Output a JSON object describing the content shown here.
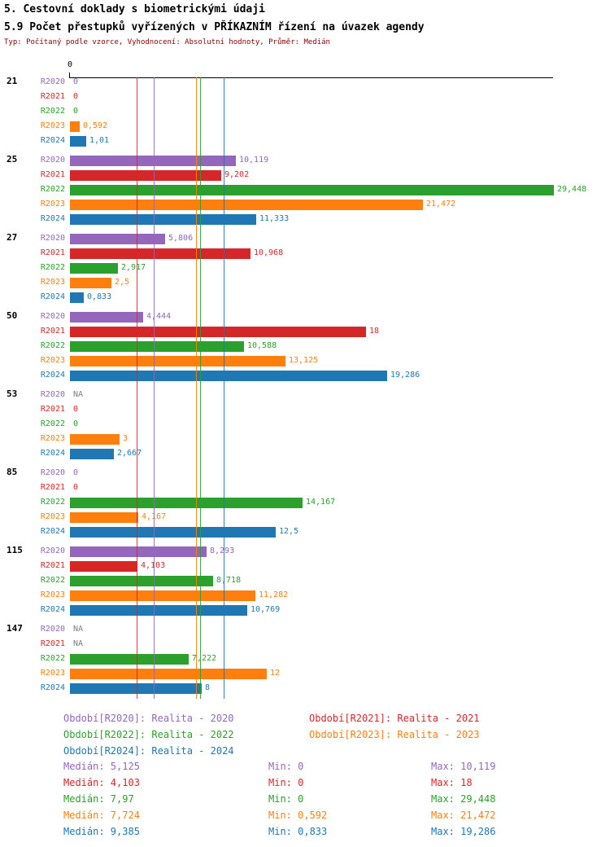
{
  "header": {
    "title1": "5. Cestovní doklady s biometrickými údaji",
    "title2": "5.9 Počet přestupků vyřízených v PŘÍKAZNÍM řízení na úvazek agendy",
    "subtitle": "Typ: Počítaný podle vzorce, Vyhodnocení: Absolutní hodnoty, Průměr: Medián"
  },
  "chart_data": {
    "type": "bar",
    "orientation": "horizontal",
    "title": "5.9 Počet přestupků vyřízených v PŘÍKAZNÍM řízení na úvazek agendy",
    "xlabel": "",
    "ylabel": "",
    "axis": {
      "tick_label": "0",
      "xmin": 0,
      "xmax": 29.448,
      "grid": false
    },
    "categories": [
      "21",
      "25",
      "27",
      "50",
      "53",
      "85",
      "115",
      "147"
    ],
    "series": [
      {
        "name": "R2020",
        "color": "#9467bd",
        "median": 5.125,
        "values": [
          0,
          10.119,
          5.806,
          4.444,
          null,
          0,
          8.293,
          null
        ],
        "value_labels": [
          "0",
          "10,119",
          "5,806",
          "4,444",
          "NA",
          "0",
          "8,293",
          "NA"
        ]
      },
      {
        "name": "R2021",
        "color": "#d62728",
        "median": 4.103,
        "values": [
          0,
          9.202,
          10.968,
          18,
          0,
          0,
          4.103,
          null
        ],
        "value_labels": [
          "0",
          "9,202",
          "10,968",
          "18",
          "0",
          "0",
          "4,103",
          "NA"
        ]
      },
      {
        "name": "R2022",
        "color": "#2ca02c",
        "median": 7.97,
        "values": [
          0,
          29.448,
          2.917,
          10.588,
          0,
          14.167,
          8.718,
          7.222
        ],
        "value_labels": [
          "0",
          "29,448",
          "2,917",
          "10,588",
          "0",
          "14,167",
          "8,718",
          "7,222"
        ]
      },
      {
        "name": "R2023",
        "color": "#ff7f0e",
        "median": 7.724,
        "values": [
          0.592,
          21.472,
          2.5,
          13.125,
          3,
          4.167,
          11.282,
          12
        ],
        "value_labels": [
          "0,592",
          "21,472",
          "2,5",
          "13,125",
          "3",
          "4,167",
          "11,282",
          "12"
        ]
      },
      {
        "name": "R2024",
        "color": "#1f77b4",
        "median": 9.385,
        "values": [
          1.01,
          11.333,
          0.833,
          19.286,
          2.667,
          12.5,
          10.769,
          8
        ],
        "value_labels": [
          "1,01",
          "11,333",
          "0,833",
          "19,286",
          "2,667",
          "12,5",
          "10,769",
          "8"
        ]
      }
    ],
    "na_label_color": "#808080",
    "legend_position": "bottom"
  },
  "legend": [
    {
      "label": "Období[R2020]: Realita - 2020",
      "color": "#9467bd"
    },
    {
      "label": "Období[R2021]: Realita - 2021",
      "color": "#d62728"
    },
    {
      "label": "Období[R2022]: Realita - 2022",
      "color": "#2ca02c"
    },
    {
      "label": "Období[R2023]: Realita - 2023",
      "color": "#ff7f0e"
    },
    {
      "label": "Období[R2024]: Realita - 2024",
      "color": "#1f77b4"
    }
  ],
  "stats": [
    {
      "median": "Medián: 5,125",
      "min": "Min: 0",
      "max": "Max: 10,119",
      "color": "#9467bd"
    },
    {
      "median": "Medián: 4,103",
      "min": "Min: 0",
      "max": "Max: 18",
      "color": "#d62728"
    },
    {
      "median": "Medián: 7,97",
      "min": "Min: 0",
      "max": "Max: 29,448",
      "color": "#2ca02c"
    },
    {
      "median": "Medián: 7,724",
      "min": "Min: 0,592",
      "max": "Max: 21,472",
      "color": "#ff7f0e"
    },
    {
      "median": "Medián: 9,385",
      "min": "Min: 0,833",
      "max": "Max: 19,286",
      "color": "#1f77b4"
    }
  ]
}
